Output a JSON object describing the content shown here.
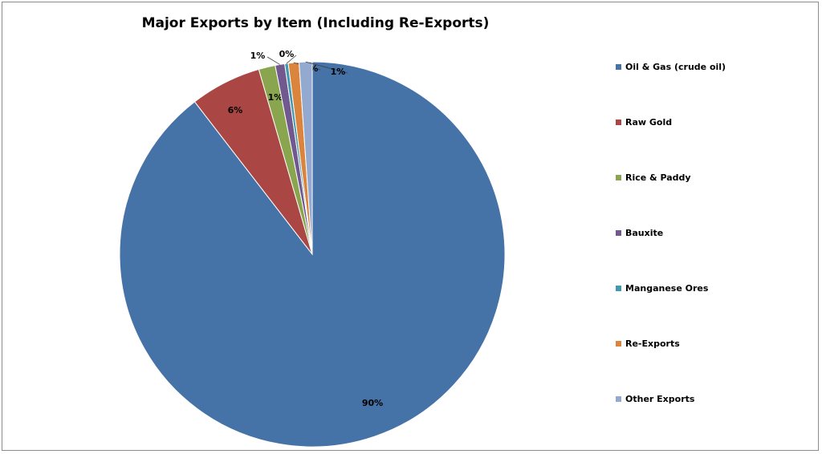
{
  "chart_data": {
    "type": "pie",
    "title": "Major Exports by Item (Including Re-Exports)",
    "slices": [
      {
        "label": "Oil & Gas (crude oil)",
        "value": 90,
        "display": "90%",
        "color": "#4572a7"
      },
      {
        "label": "Raw Gold",
        "value": 6,
        "display": "6%",
        "color": "#aa4643"
      },
      {
        "label": "Rice & Paddy",
        "value": 1.4,
        "display": "1%",
        "color": "#89a54e"
      },
      {
        "label": "Bauxite",
        "value": 0.8,
        "display": "1%",
        "color": "#71588f"
      },
      {
        "label": "Manganese Ores",
        "value": 0.3,
        "display": "0%",
        "color": "#4198af"
      },
      {
        "label": "Re-Exports",
        "value": 0.9,
        "display": "1%",
        "color": "#db843d"
      },
      {
        "label": "Other Exports",
        "value": 1.1,
        "display": "1%",
        "color": "#93a9cf"
      }
    ],
    "legend_position": "right"
  }
}
